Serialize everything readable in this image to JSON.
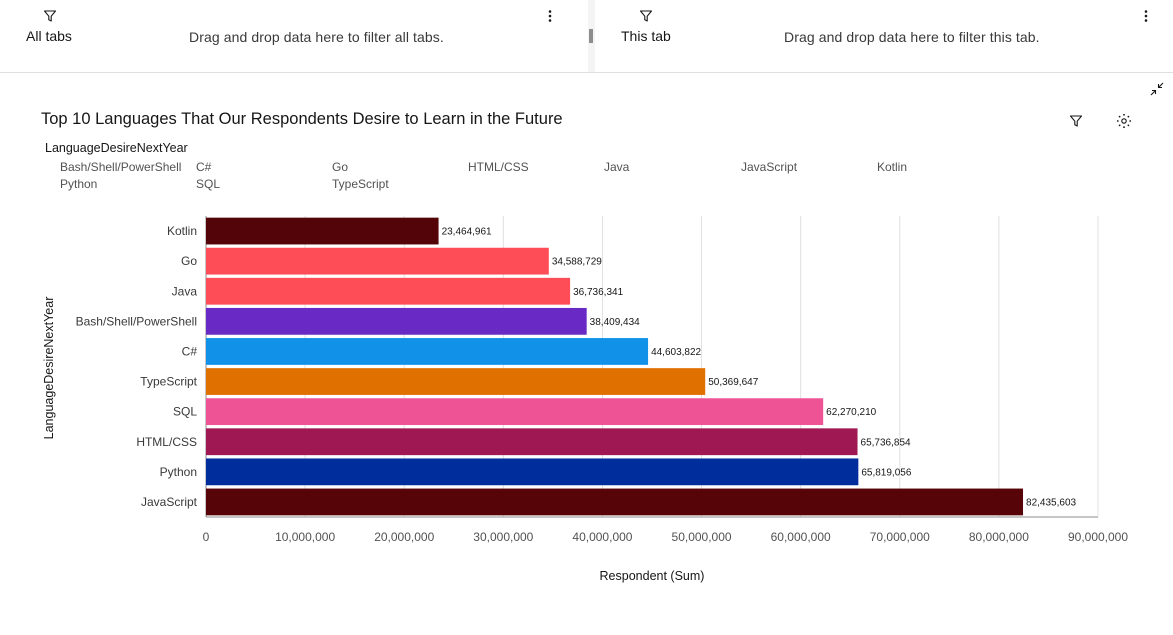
{
  "filters": {
    "all_tabs": {
      "title": "All tabs",
      "drop_text": "Drag and drop data here to filter all tabs."
    },
    "this_tab": {
      "title": "This tab",
      "drop_text": "Drag and drop data here to filter this tab."
    }
  },
  "widget": {
    "icons": [
      "collapse-icon",
      "filter-icon",
      "focus-icon"
    ]
  },
  "legend": {
    "title": "LanguageDesireNextYear",
    "items": [
      "Bash/Shell/PowerShell",
      "C#",
      "Go",
      "HTML/CSS",
      "Java",
      "JavaScript",
      "Kotlin",
      "Python",
      "SQL",
      "TypeScript"
    ]
  },
  "chart_data": {
    "type": "bar",
    "orientation": "horizontal",
    "title": "Top 10 Languages That Our Respondents Desire to Learn in the Future",
    "xlabel": "Respondent (Sum)",
    "ylabel": "LanguageDesireNextYear",
    "xlim": [
      0,
      90000000
    ],
    "xticks": [
      "0",
      "10,000,000",
      "20,000,000",
      "30,000,000",
      "40,000,000",
      "50,000,000",
      "60,000,000",
      "70,000,000",
      "80,000,000",
      "90,000,000"
    ],
    "grid": true,
    "categories": [
      "Kotlin",
      "Go",
      "Java",
      "Bash/Shell/PowerShell",
      "C#",
      "TypeScript",
      "SQL",
      "HTML/CSS",
      "Python",
      "JavaScript"
    ],
    "values": [
      23464961,
      34588729,
      36736341,
      38409434,
      44603822,
      50369647,
      62270210,
      65736854,
      65819056,
      82435603
    ],
    "labels": [
      "23,464,961",
      "34,588,729",
      "36,736,341",
      "38,409,434",
      "44,603,822",
      "50,369,647",
      "62,270,210",
      "65,736,854",
      "65,819,056",
      "82,435,603"
    ],
    "colors": [
      "#520408",
      "#ff4d58",
      "#ff4d58",
      "#6929c4",
      "#1192e8",
      "#e07000",
      "#ee5396",
      "#9f1853",
      "#002d9c",
      "#570408"
    ]
  }
}
